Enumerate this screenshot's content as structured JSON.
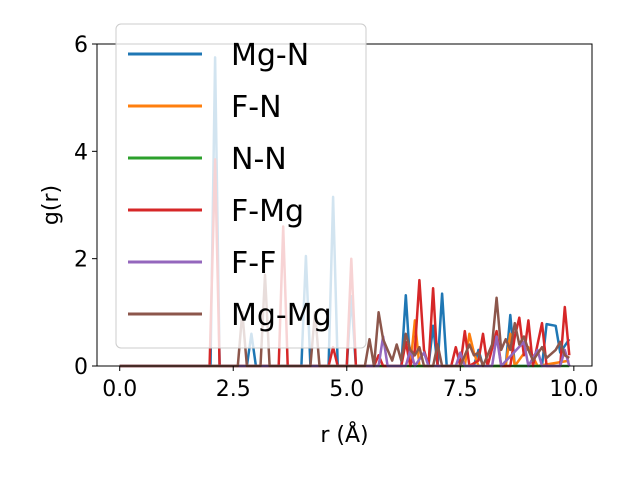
{
  "chart_data": {
    "type": "line",
    "xlabel": "r (Å)",
    "ylabel": "g(r)",
    "xlim": [
      -0.5,
      10.4
    ],
    "ylim": [
      0,
      6
    ],
    "xticks": [
      0.0,
      2.5,
      5.0,
      7.5,
      10.0
    ],
    "xtick_labels": [
      "0.0",
      "2.5",
      "5.0",
      "7.5",
      "10.0"
    ],
    "yticks": [
      0,
      2,
      4,
      6
    ],
    "ytick_labels": [
      "0",
      "2",
      "4",
      "6"
    ],
    "grid": false,
    "legend_position": "top-left",
    "series": [
      {
        "name": "Mg-N",
        "color": "#1f77b4",
        "points": [
          [
            0,
            0
          ],
          [
            2.0,
            0
          ],
          [
            2.1,
            5.75
          ],
          [
            2.2,
            0
          ],
          [
            2.8,
            0
          ],
          [
            2.9,
            0.6
          ],
          [
            3.0,
            0
          ],
          [
            4.0,
            0
          ],
          [
            4.1,
            2.05
          ],
          [
            4.2,
            0
          ],
          [
            4.6,
            0
          ],
          [
            4.7,
            3.15
          ],
          [
            4.8,
            0
          ],
          [
            5.0,
            0
          ],
          [
            5.1,
            1.3
          ],
          [
            5.2,
            0
          ],
          [
            6.2,
            0
          ],
          [
            6.3,
            1.32
          ],
          [
            6.4,
            0
          ],
          [
            6.8,
            0
          ],
          [
            6.9,
            0.75
          ],
          [
            7.0,
            0
          ],
          [
            7.1,
            1.35
          ],
          [
            7.2,
            0
          ],
          [
            7.8,
            0
          ],
          [
            7.9,
            0.3
          ],
          [
            8.0,
            0
          ],
          [
            8.5,
            0
          ],
          [
            8.6,
            0.95
          ],
          [
            8.7,
            0
          ],
          [
            9.3,
            0
          ],
          [
            9.4,
            0.78
          ],
          [
            9.6,
            0.75
          ],
          [
            9.7,
            0.25
          ],
          [
            9.9,
            0.5
          ]
        ]
      },
      {
        "name": "F-N",
        "color": "#ff7f0e",
        "points": [
          [
            0,
            0
          ],
          [
            6.4,
            0
          ],
          [
            6.5,
            0.85
          ],
          [
            6.6,
            0
          ],
          [
            7.6,
            0
          ],
          [
            7.7,
            0.6
          ],
          [
            7.8,
            0.25
          ],
          [
            7.9,
            0
          ],
          [
            8.5,
            0
          ],
          [
            8.6,
            0.6
          ],
          [
            8.7,
            0
          ],
          [
            9.0,
            0.35
          ],
          [
            9.2,
            0
          ],
          [
            9.9,
            0.1
          ]
        ]
      },
      {
        "name": "N-N",
        "color": "#2ca02c",
        "points": [
          [
            0,
            0
          ],
          [
            9.9,
            0
          ]
        ]
      },
      {
        "name": "F-Mg",
        "color": "#d62728",
        "points": [
          [
            0,
            0
          ],
          [
            1.98,
            0
          ],
          [
            2.1,
            3.85
          ],
          [
            2.2,
            0
          ],
          [
            3.5,
            0
          ],
          [
            3.6,
            2.6
          ],
          [
            3.7,
            0
          ],
          [
            4.6,
            0
          ],
          [
            4.7,
            0.35
          ],
          [
            4.8,
            0
          ],
          [
            5.0,
            0
          ],
          [
            5.1,
            2.0
          ],
          [
            5.2,
            0
          ],
          [
            5.6,
            0
          ],
          [
            5.7,
            0.2
          ],
          [
            5.8,
            0
          ],
          [
            6.2,
            0
          ],
          [
            6.3,
            0.45
          ],
          [
            6.4,
            0
          ],
          [
            6.5,
            0.3
          ],
          [
            6.6,
            1.6
          ],
          [
            6.7,
            0.3
          ],
          [
            6.8,
            0
          ],
          [
            6.9,
            1.45
          ],
          [
            7.0,
            0
          ],
          [
            7.3,
            0
          ],
          [
            7.4,
            0.35
          ],
          [
            7.5,
            0
          ],
          [
            7.6,
            0.65
          ],
          [
            7.7,
            0
          ],
          [
            7.9,
            0.1
          ],
          [
            8.0,
            0.6
          ],
          [
            8.1,
            0
          ],
          [
            8.3,
            0.65
          ],
          [
            8.4,
            0
          ],
          [
            8.6,
            0
          ],
          [
            8.7,
            0.55
          ],
          [
            8.8,
            0.9
          ],
          [
            8.9,
            0.2
          ],
          [
            9.0,
            0.85
          ],
          [
            9.1,
            0
          ],
          [
            9.3,
            0.8
          ],
          [
            9.4,
            0
          ],
          [
            9.7,
            0
          ],
          [
            9.8,
            1.1
          ],
          [
            9.9,
            0.2
          ]
        ]
      },
      {
        "name": "F-F",
        "color": "#9467bd",
        "points": [
          [
            0,
            0
          ],
          [
            5.7,
            0
          ],
          [
            5.8,
            0.55
          ],
          [
            5.9,
            0
          ],
          [
            6.3,
            0
          ],
          [
            6.4,
            0.3
          ],
          [
            6.5,
            0
          ],
          [
            6.7,
            0.25
          ],
          [
            6.8,
            0
          ],
          [
            7.4,
            0
          ],
          [
            7.5,
            0.25
          ],
          [
            7.6,
            0
          ],
          [
            8.2,
            0
          ],
          [
            8.3,
            0.55
          ],
          [
            8.4,
            0
          ],
          [
            8.9,
            0.45
          ],
          [
            9.0,
            0
          ],
          [
            9.2,
            0.3
          ],
          [
            9.3,
            0
          ],
          [
            9.7,
            0
          ],
          [
            9.8,
            0.3
          ],
          [
            9.9,
            0
          ]
        ]
      },
      {
        "name": "Mg-Mg",
        "color": "#8c564b",
        "points": [
          [
            0,
            0
          ],
          [
            2.6,
            0
          ],
          [
            2.7,
            1.0
          ],
          [
            2.8,
            0
          ],
          [
            3.1,
            0
          ],
          [
            3.2,
            1.7
          ],
          [
            3.3,
            0
          ],
          [
            4.2,
            0
          ],
          [
            4.3,
            1.0
          ],
          [
            4.4,
            0
          ],
          [
            5.4,
            0
          ],
          [
            5.5,
            0.5
          ],
          [
            5.6,
            0
          ],
          [
            5.7,
            1.0
          ],
          [
            5.8,
            0.5
          ],
          [
            5.9,
            0.3
          ],
          [
            6.0,
            0.1
          ],
          [
            6.1,
            0.4
          ],
          [
            6.2,
            0.1
          ],
          [
            6.3,
            0.6
          ],
          [
            6.4,
            0.3
          ],
          [
            6.5,
            0.2
          ],
          [
            6.6,
            0.35
          ],
          [
            6.7,
            0
          ],
          [
            6.9,
            0
          ],
          [
            7.0,
            0.4
          ],
          [
            7.1,
            0
          ],
          [
            7.5,
            0
          ],
          [
            7.6,
            0.2
          ],
          [
            7.7,
            0.4
          ],
          [
            7.8,
            0.2
          ],
          [
            7.9,
            0.25
          ],
          [
            8.0,
            0
          ],
          [
            8.2,
            0.4
          ],
          [
            8.3,
            1.27
          ],
          [
            8.4,
            0.3
          ],
          [
            8.5,
            0.5
          ],
          [
            8.6,
            0.3
          ],
          [
            8.7,
            0.8
          ],
          [
            8.8,
            0.4
          ],
          [
            8.9,
            0.55
          ],
          [
            9.0,
            0.3
          ],
          [
            9.1,
            0.1
          ],
          [
            9.3,
            0.35
          ],
          [
            9.4,
            0.15
          ],
          [
            9.6,
            0.3
          ],
          [
            9.7,
            0.45
          ],
          [
            9.8,
            0.2
          ],
          [
            9.9,
            0.15
          ]
        ]
      }
    ]
  }
}
